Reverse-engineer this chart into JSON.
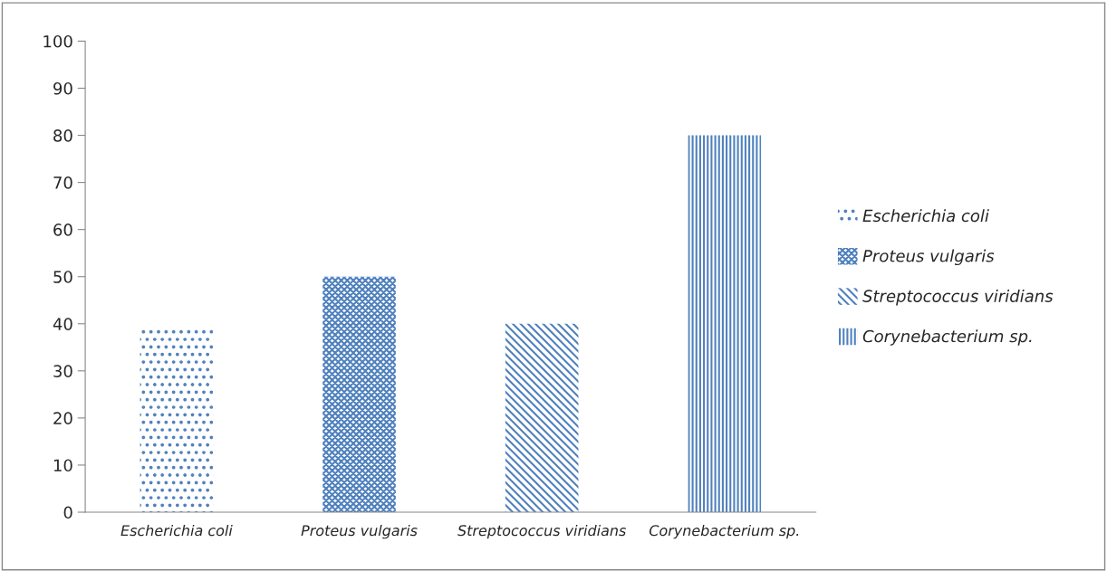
{
  "chart_data": {
    "type": "bar",
    "categories": [
      "Escherichia coli",
      "Proteus vulgaris",
      "Streptococcus viridians",
      "Corynebacterium sp."
    ],
    "series": [
      {
        "name": "Escherichia coli",
        "color": "#4f81bd",
        "values": [
          39,
          null,
          null,
          null
        ]
      },
      {
        "name": "Proteus vulgaris",
        "color": "#4f81bd",
        "values": [
          null,
          50,
          null,
          null
        ]
      },
      {
        "name": "Streptococcus viridians",
        "color": "#4f81bd",
        "values": [
          null,
          null,
          40,
          null
        ]
      },
      {
        "name": "Corynebacterium sp.",
        "color": "#4f81bd",
        "values": [
          null,
          null,
          null,
          80
        ]
      }
    ],
    "ylim": [
      0,
      100
    ],
    "yticks": [
      0,
      10,
      20,
      30,
      40,
      50,
      60,
      70,
      80,
      90,
      100
    ],
    "grid": false,
    "legend": "right"
  }
}
